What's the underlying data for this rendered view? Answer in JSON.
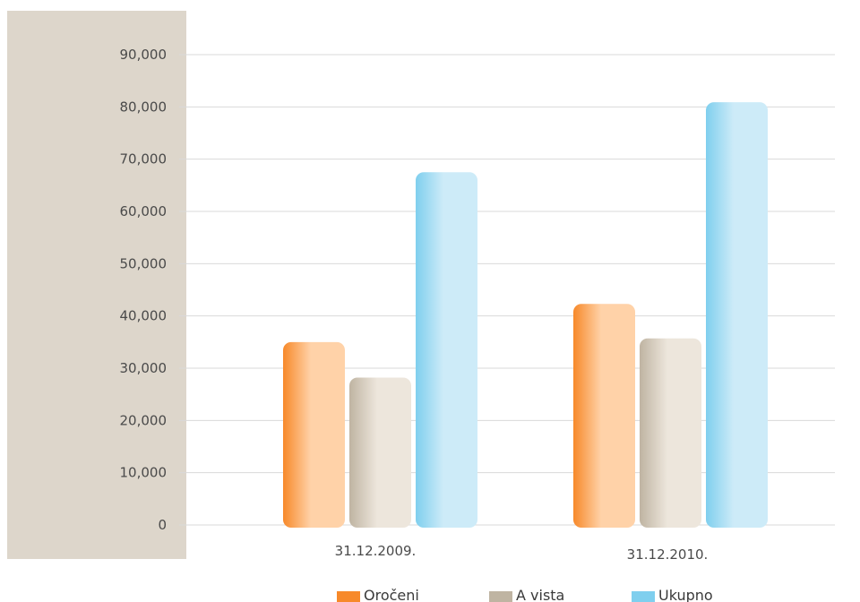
{
  "chart_data": {
    "type": "bar",
    "categories": [
      "31.12.2009.",
      "31.12.2010."
    ],
    "series": [
      {
        "name": "Oročeni",
        "values": [
          35000,
          42300
        ],
        "color": "#f7892a",
        "highlight": "#ffd2a8"
      },
      {
        "name": "A vista",
        "values": [
          28200,
          35700
        ],
        "color": "#bfb4a2",
        "highlight": "#ede6dc"
      },
      {
        "name": "Ukupno",
        "values": [
          67500,
          80900
        ],
        "color": "#7fcfee",
        "highlight": "#cdebf8"
      }
    ],
    "yticks": [
      "0",
      "10,000",
      "20,000",
      "30,000",
      "40,000",
      "50,000",
      "60,000",
      "70,000",
      "80,000",
      "90,000"
    ],
    "ylim": [
      0,
      90000
    ],
    "grid": true,
    "legend_position": "bottom",
    "axis_panel_color": "#ddd6cb",
    "grid_color": "#d9d9d9"
  }
}
